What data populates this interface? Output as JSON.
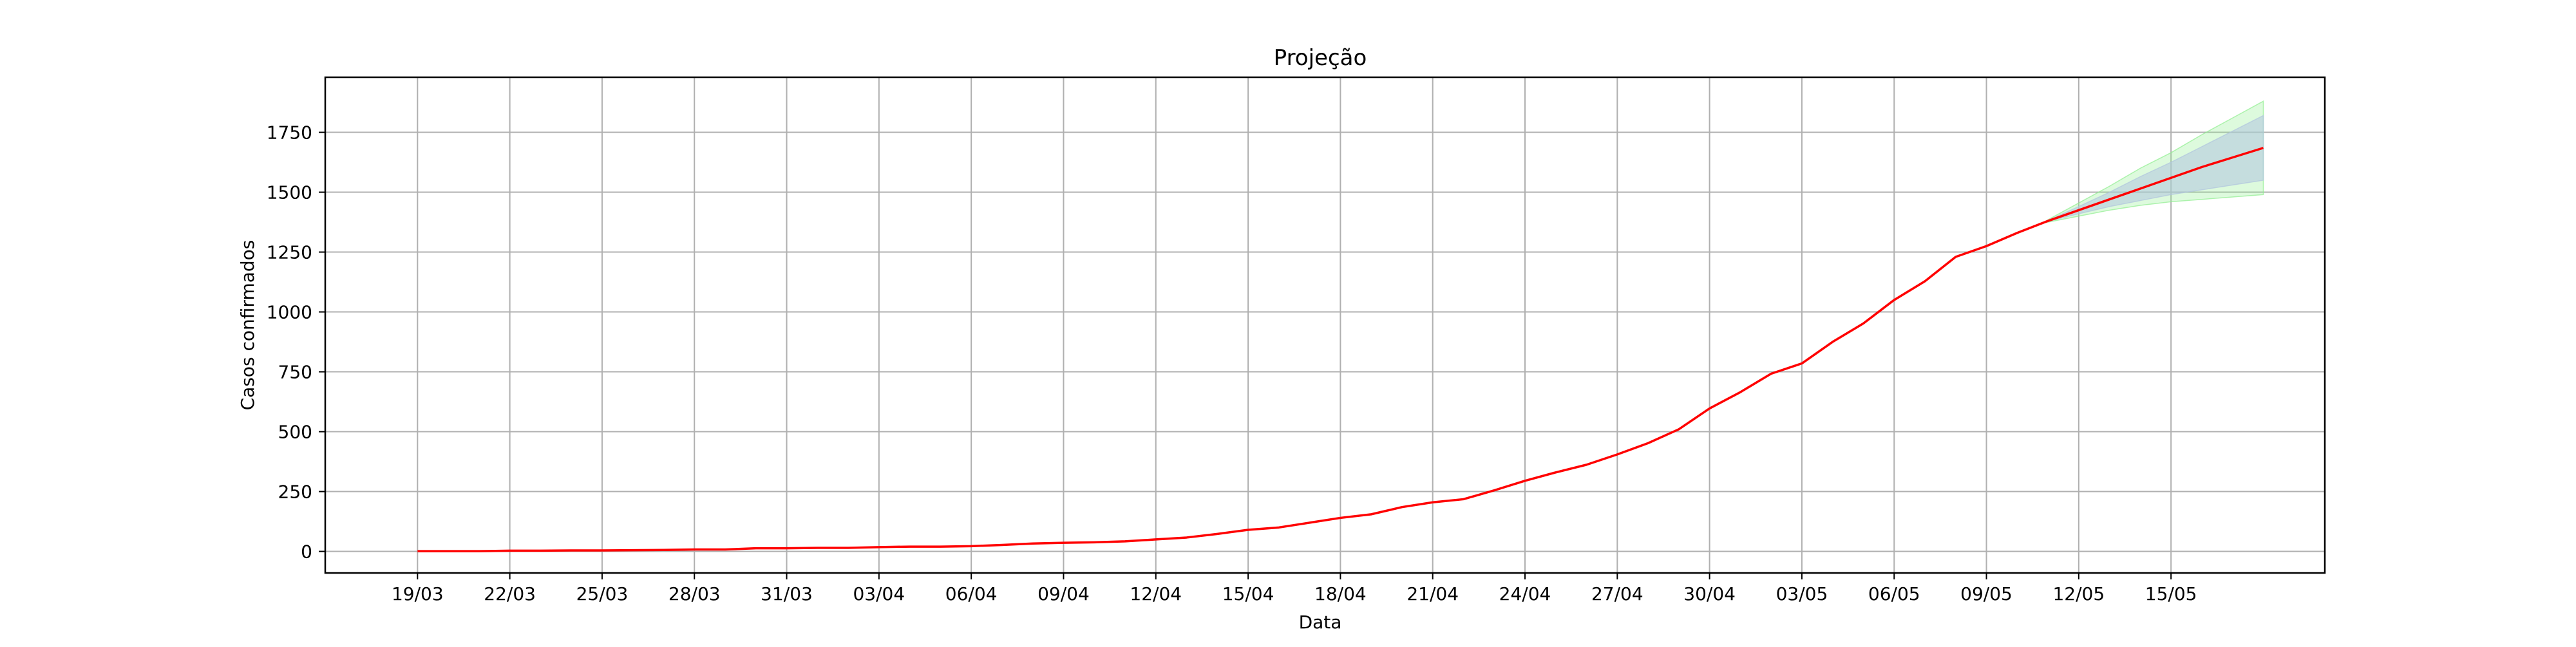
{
  "chart_data": {
    "type": "line",
    "title": "Projeção",
    "xlabel": "Data",
    "ylabel": "Casos confirmados",
    "grid": true,
    "legend": "none",
    "colors": {
      "series_line": "#ff0000",
      "inner_band": "#b0c4de",
      "outer_band": "#90ee90",
      "grid": "#b0b0b0",
      "axes": "#000000"
    },
    "x_ticks": [
      "19/03",
      "22/03",
      "25/03",
      "28/03",
      "31/03",
      "03/04",
      "06/04",
      "09/04",
      "12/04",
      "15/04",
      "18/04",
      "21/04",
      "24/04",
      "27/04",
      "30/04",
      "03/05",
      "06/05",
      "09/05",
      "12/05",
      "15/05"
    ],
    "xlim": [
      "16/03",
      "20/05"
    ],
    "y_ticks": [
      0,
      250,
      500,
      750,
      1000,
      1250,
      1500,
      1750
    ],
    "ylim": [
      -90,
      1980
    ],
    "series": [
      {
        "values": [
          {
            "x": "19/03",
            "y": 1
          },
          {
            "x": "20/03",
            "y": 1
          },
          {
            "x": "21/03",
            "y": 1
          },
          {
            "x": "22/03",
            "y": 3
          },
          {
            "x": "23/03",
            "y": 3
          },
          {
            "x": "24/03",
            "y": 4
          },
          {
            "x": "25/03",
            "y": 4
          },
          {
            "x": "26/03",
            "y": 5
          },
          {
            "x": "27/03",
            "y": 6
          },
          {
            "x": "28/03",
            "y": 8
          },
          {
            "x": "29/03",
            "y": 8
          },
          {
            "x": "30/03",
            "y": 13
          },
          {
            "x": "31/03",
            "y": 13
          },
          {
            "x": "01/04",
            "y": 15
          },
          {
            "x": "02/04",
            "y": 15
          },
          {
            "x": "03/04",
            "y": 18
          },
          {
            "x": "04/04",
            "y": 20
          },
          {
            "x": "05/04",
            "y": 20
          },
          {
            "x": "06/04",
            "y": 22
          },
          {
            "x": "07/04",
            "y": 27
          },
          {
            "x": "08/04",
            "y": 33
          },
          {
            "x": "09/04",
            "y": 36
          },
          {
            "x": "10/04",
            "y": 38
          },
          {
            "x": "11/04",
            "y": 42
          },
          {
            "x": "12/04",
            "y": 50
          },
          {
            "x": "13/04",
            "y": 58
          },
          {
            "x": "14/04",
            "y": 73
          },
          {
            "x": "15/04",
            "y": 90
          },
          {
            "x": "16/04",
            "y": 100
          },
          {
            "x": "17/04",
            "y": 120
          },
          {
            "x": "18/04",
            "y": 140
          },
          {
            "x": "19/04",
            "y": 155
          },
          {
            "x": "20/04",
            "y": 185
          },
          {
            "x": "21/04",
            "y": 205
          },
          {
            "x": "22/04",
            "y": 218
          },
          {
            "x": "23/04",
            "y": 255
          },
          {
            "x": "24/04",
            "y": 295
          },
          {
            "x": "25/04",
            "y": 330
          },
          {
            "x": "26/04",
            "y": 362
          },
          {
            "x": "27/04",
            "y": 405
          },
          {
            "x": "28/04",
            "y": 452
          },
          {
            "x": "29/04",
            "y": 510
          },
          {
            "x": "30/04",
            "y": 597
          },
          {
            "x": "01/05",
            "y": 665
          },
          {
            "x": "02/05",
            "y": 742
          },
          {
            "x": "03/05",
            "y": 785
          },
          {
            "x": "04/05",
            "y": 875
          },
          {
            "x": "05/05",
            "y": 952
          },
          {
            "x": "06/05",
            "y": 1050
          },
          {
            "x": "07/05",
            "y": 1128
          },
          {
            "x": "08/05",
            "y": 1230
          },
          {
            "x": "09/05",
            "y": 1275
          },
          {
            "x": "10/05",
            "y": 1330
          },
          {
            "x": "11/05",
            "y": 1380
          },
          {
            "x": "12/05",
            "y": 1425
          },
          {
            "x": "13/05",
            "y": 1470
          },
          {
            "x": "14/05",
            "y": 1515
          },
          {
            "x": "15/05",
            "y": 1560
          },
          {
            "x": "16/05",
            "y": 1605
          },
          {
            "x": "17/05",
            "y": 1645
          },
          {
            "x": "18/05",
            "y": 1685
          }
        ]
      }
    ],
    "bands": [
      {
        "kind": "outer",
        "values": [
          {
            "x": "11/05",
            "lower": 1375,
            "upper": 1385
          },
          {
            "x": "12/05",
            "lower": 1400,
            "upper": 1455
          },
          {
            "x": "13/05",
            "lower": 1425,
            "upper": 1525
          },
          {
            "x": "14/05",
            "lower": 1445,
            "upper": 1600
          },
          {
            "x": "15/05",
            "lower": 1460,
            "upper": 1665
          },
          {
            "x": "16/05",
            "lower": 1470,
            "upper": 1740
          },
          {
            "x": "17/05",
            "lower": 1480,
            "upper": 1810
          },
          {
            "x": "18/05",
            "lower": 1490,
            "upper": 1880
          }
        ]
      },
      {
        "kind": "inner",
        "values": [
          {
            "x": "11/05",
            "lower": 1378,
            "upper": 1382
          },
          {
            "x": "12/05",
            "lower": 1410,
            "upper": 1440
          },
          {
            "x": "13/05",
            "lower": 1440,
            "upper": 1500
          },
          {
            "x": "14/05",
            "lower": 1465,
            "upper": 1565
          },
          {
            "x": "15/05",
            "lower": 1490,
            "upper": 1625
          },
          {
            "x": "16/05",
            "lower": 1510,
            "upper": 1690
          },
          {
            "x": "17/05",
            "lower": 1530,
            "upper": 1755
          },
          {
            "x": "18/05",
            "lower": 1550,
            "upper": 1820
          }
        ]
      }
    ]
  }
}
